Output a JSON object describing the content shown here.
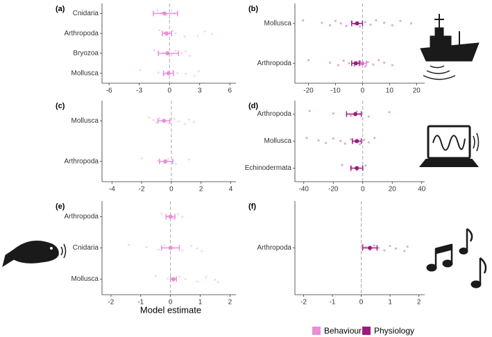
{
  "chart_data": {
    "type": "forest",
    "x_label": "Model estimate",
    "legend": [
      {
        "name": "Behaviour",
        "color": "#e88fd8"
      },
      {
        "name": "Physiology",
        "color": "#9c1a7c"
      }
    ],
    "panels": [
      {
        "label": "(a)",
        "categories": [
          "Cnidaria",
          "Arthropoda",
          "Bryozoa",
          "Mollusca"
        ],
        "xlim": [
          -6.7,
          6.6
        ],
        "xticks": [
          -6,
          -3,
          0,
          3,
          6
        ],
        "series": [
          {
            "values": [
              -0.5,
              -0.3,
              -0.2,
              -0.1
            ],
            "lower": [
              -1.6,
              -0.7,
              -1.1,
              -0.6
            ],
            "upper": [
              0.8,
              0.2,
              0.9,
              0.4
            ],
            "points": [
              [
                -1.2,
                -0.8,
                -0.3,
                0.2,
                0.5
              ],
              [
                -1,
                -0.6,
                -0.2,
                0.3,
                0.6,
                2.8,
                3.5,
                4.2,
                1.5
              ],
              [
                -1.5,
                -0.6,
                0.2,
                0.6,
                1.2,
                2.0,
                1.6
              ],
              [
                -2.9,
                -1.1,
                -0.5,
                0.3,
                0.8,
                2.5,
                2.9,
                1.6
              ]
            ]
          },
          {
            "values": [
              null,
              null,
              null,
              null
            ],
            "lower": [
              null,
              null,
              null,
              null
            ],
            "upper": [
              null,
              null,
              null,
              null
            ],
            "points": [
              null,
              null,
              null,
              null
            ]
          }
        ]
      },
      {
        "label": "(b)",
        "categories": [
          "Mollusca",
          "Arthropoda"
        ],
        "xlim": [
          -25,
          23
        ],
        "xticks": [
          -20,
          -10,
          0,
          10,
          20
        ],
        "series": [
          {
            "values": [
              null,
              0
            ],
            "lower": [
              null,
              -1.5
            ],
            "upper": [
              null,
              1.5
            ],
            "points": [
              null,
              null
            ]
          },
          {
            "values": [
              -2,
              -2.5
            ],
            "lower": [
              -4,
              -4
            ],
            "upper": [
              0,
              -1
            ],
            "points": [
              [
                -22,
                -15,
                -12,
                -10,
                -8,
                -6,
                -4,
                -3,
                -1,
                1,
                3,
                5,
                8,
                11,
                14,
                18
              ],
              [
                -20,
                -12,
                -9,
                -7,
                -5,
                -3,
                -1,
                0,
                1,
                2,
                4,
                6,
                8,
                11
              ]
            ]
          }
        ]
      },
      {
        "label": "(c)",
        "categories": [
          "Mollusca",
          "Arthropoda"
        ],
        "xlim": [
          -4.67,
          4.35
        ],
        "xticks": [
          -4,
          -2,
          0,
          2,
          4
        ],
        "series": [
          {
            "values": [
              -0.5,
              -0.4
            ],
            "lower": [
              -0.9,
              -0.8
            ],
            "upper": [
              -0.1,
              0.1
            ],
            "points": [
              [
                -1.5,
                -1.2,
                -1,
                -0.8,
                -0.5,
                -0.2,
                0.2,
                0.5,
                0.9,
                1.2,
                1.5
              ],
              [
                -2,
                -0.9,
                -0.5,
                -0.2,
                0.1,
                0.3,
                1.2
              ]
            ]
          },
          {
            "values": [
              null,
              null
            ],
            "lower": [
              null,
              null
            ],
            "upper": [
              null,
              null
            ],
            "points": [
              null,
              null
            ]
          }
        ]
      },
      {
        "label": "(d)",
        "categories": [
          "Arthropoda",
          "Mollusca",
          "Echinodermata"
        ],
        "xlim": [
          -46,
          42
        ],
        "xticks": [
          -40,
          -20,
          0,
          20,
          40
        ],
        "series": [
          {
            "values": [
              null,
              null,
              null
            ],
            "lower": [
              null,
              null,
              null
            ],
            "upper": [
              null,
              null,
              null
            ],
            "points": [
              null,
              null,
              null
            ]
          },
          {
            "values": [
              -5,
              -4,
              -4
            ],
            "lower": [
              -11,
              -7,
              -8
            ],
            "upper": [
              -1,
              -1,
              0
            ],
            "points": [
              [
                -36,
                -20,
                -8,
                -4,
                -2,
                4,
                18
              ],
              [
                -38,
                -30,
                -25,
                -20,
                -15,
                -12,
                -8,
                -5,
                -2,
                1,
                4,
                8
              ],
              [
                -14,
                -8,
                -4,
                2
              ]
            ]
          }
        ]
      },
      {
        "label": "(e)",
        "categories": [
          "Arthropoda",
          "Cnidaria",
          "Mollusca"
        ],
        "xlim": [
          -2.3,
          2.2
        ],
        "xticks": [
          -2,
          -1,
          0,
          1,
          2
        ],
        "series": [
          {
            "values": [
              0,
              0,
              0.1
            ],
            "lower": [
              -0.15,
              -0.3,
              0
            ],
            "upper": [
              0.15,
              0.3,
              0.2
            ],
            "points": [
              [
                -0.3,
                -0.1,
                0.1,
                0.25,
                0.4
              ],
              [
                -1.4,
                -0.8,
                -0.4,
                -0.2,
                0.1,
                0.4,
                0.7,
                0.9,
                1.05
              ],
              [
                -0.5,
                -0.1,
                0.1,
                0.3,
                0.5,
                0.9,
                1.2,
                1.5,
                1.6
              ]
            ]
          },
          {
            "values": [
              null,
              null,
              null
            ],
            "lower": [
              null,
              null,
              null
            ],
            "upper": [
              null,
              null,
              null
            ],
            "points": [
              null,
              null,
              null
            ]
          }
        ]
      },
      {
        "label": "(f)",
        "categories": [
          "Arthropoda"
        ],
        "xlim": [
          -2.3,
          2.2
        ],
        "xticks": [
          -2,
          -1,
          0,
          1,
          2
        ],
        "series": [
          {
            "values": [
              null
            ],
            "lower": [
              null
            ],
            "upper": [
              null
            ],
            "points": [
              null
            ]
          },
          {
            "values": [
              0.3
            ],
            "lower": [
              0.05
            ],
            "upper": [
              0.55
            ],
            "points": [
              [
                0.05,
                0.15,
                0.3,
                0.45,
                0.6,
                0.8,
                1.0,
                1.2,
                1.5,
                1.6
              ]
            ]
          }
        ]
      }
    ]
  }
}
